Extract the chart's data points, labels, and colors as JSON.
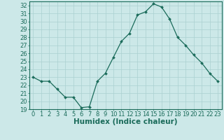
{
  "x": [
    0,
    1,
    2,
    3,
    4,
    5,
    6,
    7,
    8,
    9,
    10,
    11,
    12,
    13,
    14,
    15,
    16,
    17,
    18,
    19,
    20,
    21,
    22,
    23
  ],
  "y": [
    23.0,
    22.5,
    22.5,
    21.5,
    20.5,
    20.5,
    19.2,
    19.3,
    22.5,
    23.5,
    25.5,
    27.5,
    28.5,
    30.8,
    31.2,
    32.2,
    31.8,
    30.3,
    28.0,
    27.0,
    25.8,
    24.8,
    23.5,
    22.5
  ],
  "xlabel": "Humidex (Indice chaleur)",
  "ylim": [
    19,
    32.5
  ],
  "xlim": [
    -0.5,
    23.5
  ],
  "yticks": [
    19,
    20,
    21,
    22,
    23,
    24,
    25,
    26,
    27,
    28,
    29,
    30,
    31,
    32
  ],
  "xticks": [
    0,
    1,
    2,
    3,
    4,
    5,
    6,
    7,
    8,
    9,
    10,
    11,
    12,
    13,
    14,
    15,
    16,
    17,
    18,
    19,
    20,
    21,
    22,
    23
  ],
  "line_color": "#1a6b5a",
  "marker_color": "#1a6b5a",
  "bg_color": "#cce8e8",
  "grid_color": "#aad0d0",
  "tick_label_color": "#1a6b5a",
  "xlabel_color": "#1a6b5a",
  "font_size": 6.0,
  "xlabel_fontsize": 7.5
}
